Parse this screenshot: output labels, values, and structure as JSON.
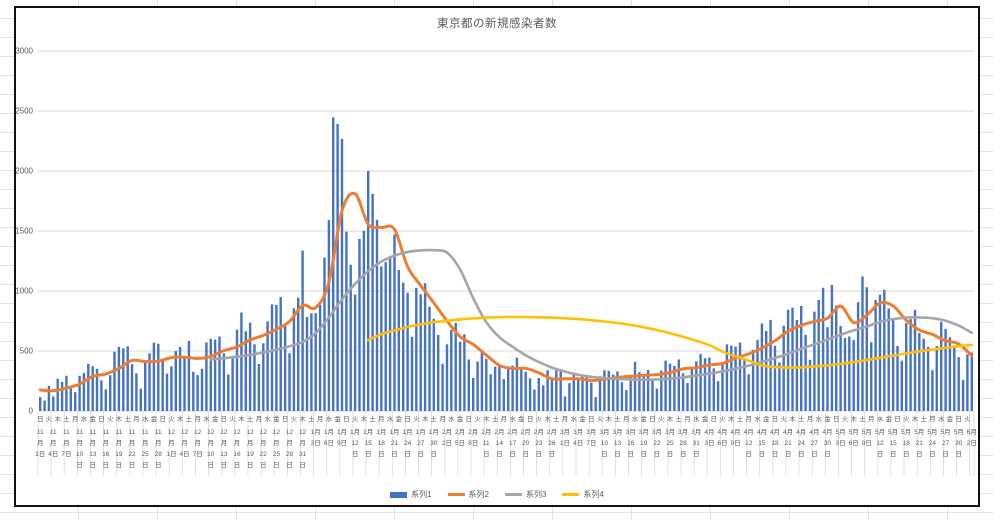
{
  "chart_data": {
    "type": "bar",
    "title": "東京都の新規感染者数",
    "y_axis": {
      "ticks": [
        0,
        500,
        1000,
        1500,
        2000,
        2500,
        3000
      ],
      "max": 3000,
      "gridlines": true
    },
    "x_axis": {
      "weekday_cycle": [
        "日",
        "火",
        "木",
        "土",
        "月",
        "水",
        "金"
      ],
      "weekday_step_days": 2,
      "date_step_days": 3,
      "month_suffix": "月",
      "day_suffix": "日",
      "date_labels": [
        [
          11,
          1
        ],
        [
          11,
          4
        ],
        [
          11,
          7
        ],
        [
          11,
          10
        ],
        [
          11,
          13
        ],
        [
          11,
          16
        ],
        [
          11,
          19
        ],
        [
          11,
          22
        ],
        [
          11,
          25
        ],
        [
          11,
          28
        ],
        [
          12,
          1
        ],
        [
          12,
          4
        ],
        [
          12,
          7
        ],
        [
          12,
          10
        ],
        [
          12,
          13
        ],
        [
          12,
          16
        ],
        [
          12,
          19
        ],
        [
          12,
          22
        ],
        [
          12,
          25
        ],
        [
          12,
          28
        ],
        [
          12,
          31
        ],
        [
          1,
          3
        ],
        [
          1,
          6
        ],
        [
          1,
          9
        ],
        [
          1,
          12
        ],
        [
          1,
          15
        ],
        [
          1,
          18
        ],
        [
          1,
          21
        ],
        [
          1,
          24
        ],
        [
          1,
          27
        ],
        [
          1,
          30
        ],
        [
          2,
          2
        ],
        [
          2,
          5
        ],
        [
          2,
          8
        ],
        [
          2,
          11
        ],
        [
          2,
          14
        ],
        [
          2,
          17
        ],
        [
          2,
          20
        ],
        [
          2,
          23
        ],
        [
          2,
          26
        ],
        [
          3,
          1
        ],
        [
          3,
          4
        ],
        [
          3,
          7
        ],
        [
          3,
          10
        ],
        [
          3,
          13
        ],
        [
          3,
          16
        ],
        [
          3,
          19
        ],
        [
          3,
          22
        ],
        [
          3,
          25
        ],
        [
          3,
          28
        ],
        [
          3,
          31
        ],
        [
          4,
          3
        ],
        [
          4,
          6
        ],
        [
          4,
          9
        ],
        [
          4,
          12
        ],
        [
          4,
          15
        ],
        [
          4,
          18
        ],
        [
          4,
          21
        ],
        [
          4,
          24
        ],
        [
          4,
          27
        ],
        [
          4,
          30
        ],
        [
          5,
          3
        ],
        [
          5,
          6
        ],
        [
          5,
          9
        ],
        [
          5,
          12
        ],
        [
          5,
          15
        ],
        [
          5,
          18
        ],
        [
          5,
          21
        ],
        [
          5,
          24
        ],
        [
          5,
          27
        ],
        [
          5,
          30
        ],
        [
          6,
          2
        ]
      ]
    },
    "total_days": 214,
    "legend_position": "bottom",
    "series": [
      {
        "name": "系列1",
        "type": "bar",
        "color": "#4472C4",
        "start_day": 0,
        "step": 1,
        "values": [
          116,
          87,
          209,
          122,
          269,
          242,
          294,
          189,
          157,
          293,
          317,
          393,
          374,
          352,
          255,
          180,
          298,
          493,
          534,
          522,
          539,
          391,
          314,
          186,
          401,
          481,
          570,
          561,
          418,
          311,
          372,
          500,
          533,
          449,
          584,
          327,
          299,
          352,
          572,
          602,
          595,
          621,
          480,
          305,
          460,
          678,
          821,
          664,
          736,
          556,
          392,
          563,
          748,
          888,
          884,
          949,
          708,
          481,
          856,
          944,
          1337,
          783,
          814,
          816,
          884,
          1278,
          1591,
          2447,
          2392,
          2268,
          1494,
          1219,
          970,
          1433,
          1502,
          2001,
          1809,
          1592,
          1204,
          1240,
          1274,
          1471,
          1175,
          1070,
          986,
          618,
          1026,
          973,
          1064,
          868,
          769,
          633,
          393,
          556,
          676,
          734,
          577,
          639,
          429,
          276,
          412,
          491,
          434,
          307,
          369,
          371,
          266,
          350,
          378,
          445,
          353,
          327,
          272,
          178,
          275,
          213,
          340,
          270,
          337,
          329,
          121,
          232,
          316,
          279,
          301,
          293,
          237,
          116,
          290,
          340,
          335,
          304,
          330,
          239,
          175,
          300,
          409,
          323,
          303,
          342,
          256,
          187,
          337,
          420,
          394,
          376,
          430,
          313,
          234,
          364,
          414,
          475,
          440,
          446,
          355,
          249,
          399,
          555,
          545,
          537,
          570,
          421,
          306,
          510,
          591,
          729,
          667,
          759,
          543,
          405,
          711,
          843,
          861,
          759,
          876,
          635,
          425,
          828,
          925,
          1027,
          698,
          1050,
          879,
          708,
          609,
          621,
          591,
          907,
          1121,
          1032,
          573,
          925,
          969,
          1010,
          854,
          772,
          542,
          419,
          732,
          766,
          843,
          649,
          602,
          535,
          340,
          542,
          743,
          684,
          614,
          539,
          448,
          260,
          471,
          487
        ]
      },
      {
        "name": "系列2",
        "type": "line",
        "color": "#ED7D31",
        "start_day": 0,
        "step": 3,
        "values": [
          175,
          168,
          191,
          224,
          288,
          309,
          355,
          422,
          412,
          415,
          445,
          449,
          438,
          455,
          503,
          534,
          592,
          630,
          681,
          746,
          880,
          862,
          1072,
          1668,
          1810,
          1555,
          1530,
          1513,
          1203,
          1046,
          901,
          751,
          620,
          555,
          465,
          380,
          354,
          356,
          318,
          268,
          269,
          269,
          254,
          265,
          279,
          289,
          297,
          303,
          320,
          351,
          361,
          384,
          397,
          441,
          476,
          523,
          586,
          665,
          714,
          747,
          773,
          874,
          737,
          798,
          900,
          876,
          757,
          675,
          638,
          585,
          559,
          460
        ]
      },
      {
        "name": "系列3",
        "type": "line",
        "color": "#A5A5A5",
        "start_day": 39,
        "step": 3,
        "values": [
          430,
          440,
          452,
          468,
          488,
          512,
          540,
          575,
          650,
          780,
          930,
          1060,
          1165,
          1245,
          1295,
          1325,
          1338,
          1340,
          1320,
          1180,
          940,
          740,
          615,
          535,
          465,
          408,
          362,
          328,
          302,
          285,
          273,
          267,
          263,
          261,
          263,
          270,
          280,
          295,
          312,
          330,
          352,
          378,
          408,
          442,
          478,
          518,
          556,
          595,
          635,
          672,
          705,
          742,
          765,
          778,
          780,
          773,
          752,
          712,
          652
        ]
      },
      {
        "name": "系列4",
        "type": "line",
        "color": "#FFC000",
        "start_day": 75,
        "step": 3,
        "values": [
          590,
          640,
          672,
          700,
          722,
          740,
          752,
          763,
          772,
          778,
          782,
          784,
          783,
          781,
          778,
          773,
          766,
          757,
          746,
          733,
          717,
          698,
          675,
          648,
          618,
          585,
          548,
          495,
          455,
          420,
          380,
          366,
          362,
          363,
          372,
          380,
          392,
          407,
          425,
          443,
          462,
          480,
          497,
          512,
          527,
          540,
          552
        ]
      }
    ]
  }
}
